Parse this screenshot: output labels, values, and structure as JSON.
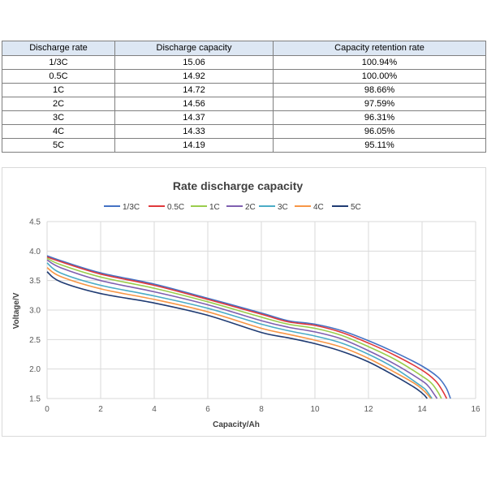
{
  "table": {
    "headers": [
      "Discharge rate",
      "Discharge capacity",
      "Capacity retention rate"
    ],
    "rows": [
      [
        "1/3C",
        "15.06",
        "100.94%"
      ],
      [
        "0.5C",
        "14.92",
        "100.00%"
      ],
      [
        "1C",
        "14.72",
        "98.66%"
      ],
      [
        "2C",
        "14.56",
        "97.59%"
      ],
      [
        "3C",
        "14.37",
        "96.31%"
      ],
      [
        "4C",
        "14.33",
        "96.05%"
      ],
      [
        "5C",
        "14.19",
        "95.11%"
      ]
    ]
  },
  "chart_data": {
    "type": "line",
    "title": "Rate discharge capacity",
    "xlabel": "Capacity/Ah",
    "ylabel": "Voltage/V",
    "xlim": [
      0,
      16
    ],
    "ylim": [
      1.5,
      4.5
    ],
    "xticks": [
      "0",
      "2",
      "4",
      "6",
      "8",
      "10",
      "12",
      "14",
      "16"
    ],
    "yticks": [
      "1.5",
      "2.0",
      "2.5",
      "3.0",
      "3.5",
      "4.0",
      "4.5"
    ],
    "grid": true,
    "legend_position": "top",
    "series": [
      {
        "name": "1/3C",
        "color": "#4472c4",
        "x": [
          0,
          0.5,
          2,
          4,
          6,
          8,
          9,
          10,
          11,
          12,
          13,
          14,
          14.6,
          14.9,
          15.06
        ],
        "y": [
          3.92,
          3.84,
          3.63,
          3.44,
          3.2,
          2.95,
          2.82,
          2.76,
          2.65,
          2.48,
          2.28,
          2.05,
          1.86,
          1.68,
          1.5
        ]
      },
      {
        "name": "0.5C",
        "color": "#e0383b",
        "x": [
          0,
          0.5,
          2,
          4,
          6,
          8,
          9,
          10,
          11,
          12,
          13,
          14,
          14.5,
          14.75,
          14.92
        ],
        "y": [
          3.9,
          3.82,
          3.61,
          3.42,
          3.18,
          2.93,
          2.8,
          2.74,
          2.62,
          2.44,
          2.23,
          1.98,
          1.8,
          1.64,
          1.5
        ]
      },
      {
        "name": "1C",
        "color": "#9acd4c",
        "x": [
          0,
          0.5,
          2,
          4,
          6,
          8,
          9,
          10,
          11,
          12,
          13,
          14,
          14.35,
          14.58,
          14.72
        ],
        "y": [
          3.88,
          3.77,
          3.56,
          3.37,
          3.14,
          2.88,
          2.76,
          2.69,
          2.57,
          2.38,
          2.16,
          1.88,
          1.76,
          1.62,
          1.5
        ]
      },
      {
        "name": "2C",
        "color": "#7f5fb0",
        "x": [
          0,
          0.5,
          2,
          4,
          6,
          8,
          9,
          10,
          11,
          12,
          13,
          14,
          14.25,
          14.44,
          14.56
        ],
        "y": [
          3.85,
          3.72,
          3.5,
          3.31,
          3.09,
          2.82,
          2.71,
          2.63,
          2.51,
          2.31,
          2.08,
          1.8,
          1.7,
          1.58,
          1.5
        ]
      },
      {
        "name": "3C",
        "color": "#4bacc6",
        "x": [
          0,
          0.5,
          2,
          4,
          6,
          8,
          9,
          10,
          11,
          12,
          13,
          14,
          14.15,
          14.28,
          14.37
        ],
        "y": [
          3.8,
          3.63,
          3.42,
          3.24,
          3.03,
          2.76,
          2.65,
          2.56,
          2.44,
          2.25,
          2.01,
          1.7,
          1.64,
          1.56,
          1.5
        ]
      },
      {
        "name": "4C",
        "color": "#f79646",
        "x": [
          0,
          0.5,
          2,
          4,
          6,
          8,
          9,
          10,
          11,
          12,
          13,
          13.7,
          14.0,
          14.2,
          14.33
        ],
        "y": [
          3.72,
          3.57,
          3.36,
          3.18,
          2.97,
          2.69,
          2.59,
          2.49,
          2.37,
          2.18,
          1.94,
          1.76,
          1.66,
          1.57,
          1.5
        ]
      },
      {
        "name": "5C",
        "color": "#1f3b73",
        "x": [
          0,
          0.5,
          2,
          4,
          6,
          8,
          9,
          10,
          11,
          12,
          13,
          13.6,
          13.9,
          14.08,
          14.19
        ],
        "y": [
          3.65,
          3.48,
          3.28,
          3.12,
          2.91,
          2.62,
          2.53,
          2.43,
          2.3,
          2.12,
          1.88,
          1.72,
          1.63,
          1.56,
          1.5
        ]
      }
    ]
  }
}
